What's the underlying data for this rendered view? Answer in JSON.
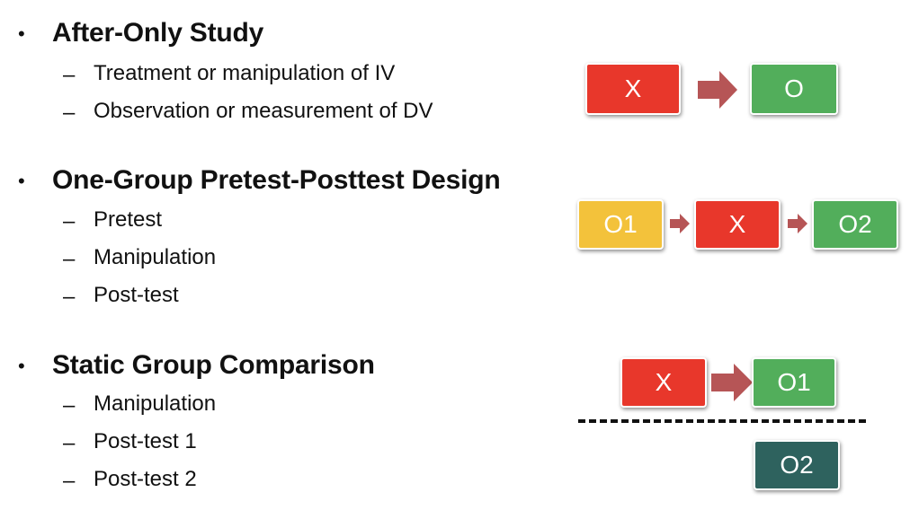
{
  "colors": {
    "red": "#e8372b",
    "green": "#52ae5b",
    "yellow": "#f3c23b",
    "teal": "#2e625e",
    "arrow": "#b65556"
  },
  "bullets": [
    {
      "heading": "After-Only Study",
      "items": [
        "Treatment or manipulation of IV",
        "Observation or measurement of DV"
      ]
    },
    {
      "heading": "One-Group Pretest-Posttest Design",
      "items": [
        "Pretest",
        "Manipulation",
        "Post-test"
      ]
    },
    {
      "heading": "Static Group Comparison",
      "items": [
        "Manipulation",
        "Post-test 1",
        "Post-test 2"
      ]
    }
  ],
  "diagrams": {
    "after_only": {
      "treatment": "X",
      "observation": "O"
    },
    "pretest_posttest": {
      "pretest": "O1",
      "treatment": "X",
      "posttest": "O2"
    },
    "static_group": {
      "treatment": "X",
      "observation_1": "O1",
      "observation_2": "O2"
    }
  },
  "symbols": {
    "bullet": "•",
    "dash": "–"
  }
}
